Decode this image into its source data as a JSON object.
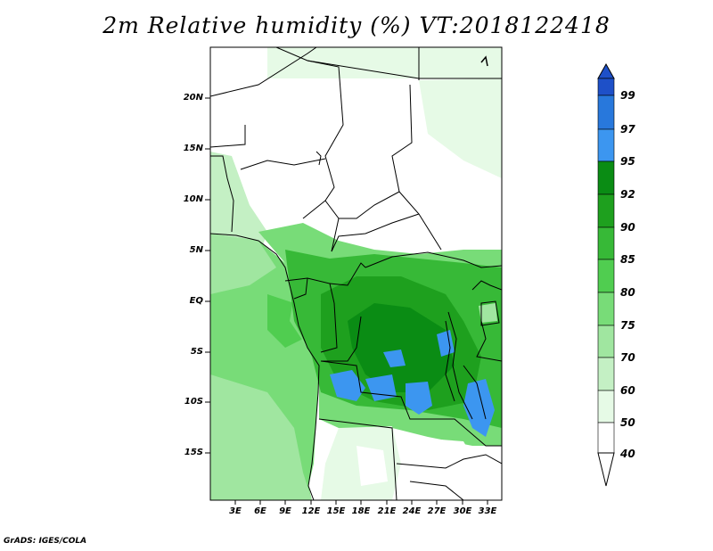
{
  "title": "2m Relative humidity (%) VT:2018122418",
  "footer": "GrADS: IGES/COLA",
  "map": {
    "lat_labels": [
      "20N",
      "15N",
      "10N",
      "5N",
      "EQ",
      "5S",
      "10S",
      "15S"
    ],
    "lon_labels": [
      "3E",
      "6E",
      "9E",
      "12E",
      "15E",
      "18E",
      "21E",
      "24E",
      "27E",
      "30E",
      "33E"
    ]
  },
  "colorbar": {
    "levels": [
      "99",
      "97",
      "95",
      "92",
      "90",
      "85",
      "80",
      "75",
      "70",
      "60",
      "50",
      "40"
    ],
    "colors": [
      "#1e50c8",
      "#2878dc",
      "#3c96f0",
      "#0a8c14",
      "#1ea01e",
      "#37b937",
      "#50cd50",
      "#78dc78",
      "#a0e6a0",
      "#c4f0c4",
      "#e6fae6",
      "#ffffff"
    ]
  },
  "colors": {
    "land_dry": "#ffffff",
    "land_moist": "#a0e6a0",
    "land_wet": "#37b937",
    "land_very_wet": "#0a8c14",
    "saturated": "#3c96f0",
    "ocean": "#78dc78",
    "ocean_wet": "#50cd50"
  }
}
